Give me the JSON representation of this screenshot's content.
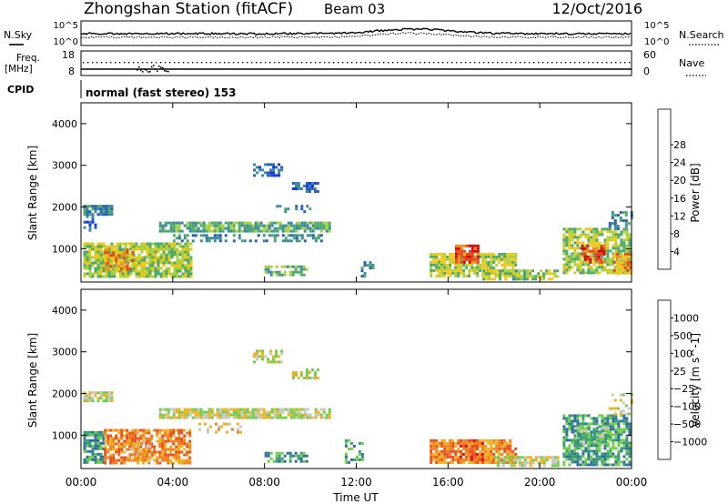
{
  "header": {
    "station": "Zhongshan Station (fitACF)",
    "beam": "Beam 03",
    "date": "12/Oct/2016"
  },
  "panels": {
    "nsky_label": "N.Sky",
    "nsearch_label": "N.Search",
    "nsky_ticks": [
      "10^5",
      "10^0"
    ],
    "nsearch_ticks": [
      "10^5",
      "10^0"
    ],
    "freq_label_top": "Freq.",
    "freq_label_bottom": "[MHz]",
    "freq_ticks": [
      "18",
      "8"
    ],
    "nave_label": "Nave",
    "nave_ticks": [
      "60",
      "0"
    ],
    "cpid_label": "CPID",
    "cpid_text": "normal (fast stereo) 153"
  },
  "colors": {
    "power": [
      "#1432e6",
      "#2a60b4",
      "#3a8aa0",
      "#4caa6a",
      "#a8d040",
      "#f0c818",
      "#f08c1c",
      "#e64a1a",
      "#d00c10"
    ],
    "velocity": [
      "#1a3ca8",
      "#2f6f9a",
      "#3a9a7a",
      "#6fcf4a",
      "#c8c8c0",
      "#f0b020",
      "#f08020",
      "#e85020",
      "#e01010"
    ]
  },
  "chart_data": [
    {
      "type": "heatmap",
      "name": "power",
      "ylabel": "Slant Range [km]",
      "ylim": [
        200,
        4500
      ],
      "y_ticks": [
        1000,
        2000,
        3000,
        4000
      ],
      "xlim": [
        0,
        24
      ],
      "colorbar": {
        "label": "Power [dB]",
        "ticks": [
          "4",
          "8",
          "12",
          "16",
          "20",
          "24",
          "28"
        ]
      },
      "regions": [
        {
          "t0": 0.1,
          "t1": 1.3,
          "r0": 1800,
          "r1": 2050,
          "v": 2,
          "d": 0.85
        },
        {
          "t0": 0.1,
          "t1": 0.6,
          "r0": 1450,
          "r1": 1800,
          "v": 1,
          "d": 0.5
        },
        {
          "t0": 0.1,
          "t1": 4.8,
          "r0": 350,
          "r1": 1150,
          "v": 4,
          "d": 0.85
        },
        {
          "t0": 1.0,
          "t1": 2.2,
          "r0": 500,
          "r1": 1000,
          "v": 6,
          "d": 0.6
        },
        {
          "t0": 3.4,
          "t1": 10.8,
          "r0": 1400,
          "r1": 1650,
          "v": 3,
          "d": 0.85
        },
        {
          "t0": 4.0,
          "t1": 10.5,
          "r0": 1200,
          "r1": 1350,
          "v": 2,
          "d": 0.5
        },
        {
          "t0": 7.5,
          "t1": 8.8,
          "r0": 2750,
          "r1": 3050,
          "v": 1,
          "d": 0.5
        },
        {
          "t0": 9.2,
          "t1": 10.3,
          "r0": 2350,
          "r1": 2600,
          "v": 1,
          "d": 0.6
        },
        {
          "t0": 8.5,
          "t1": 10.0,
          "r0": 1900,
          "r1": 2050,
          "v": 2,
          "d": 0.35
        },
        {
          "t0": 8.0,
          "t1": 9.8,
          "r0": 350,
          "r1": 600,
          "v": 3,
          "d": 0.6
        },
        {
          "t0": 12.2,
          "t1": 12.8,
          "r0": 300,
          "r1": 700,
          "v": 2,
          "d": 0.35
        },
        {
          "t0": 15.2,
          "t1": 19.0,
          "r0": 350,
          "r1": 900,
          "v": 4,
          "d": 0.85
        },
        {
          "t0": 16.3,
          "t1": 17.3,
          "r0": 700,
          "r1": 1100,
          "v": 7,
          "d": 0.8
        },
        {
          "t0": 17.5,
          "t1": 20.8,
          "r0": 250,
          "r1": 500,
          "v": 4,
          "d": 0.7
        },
        {
          "t0": 21.0,
          "t1": 24.0,
          "r0": 400,
          "r1": 1500,
          "v": 4,
          "d": 0.75
        },
        {
          "t0": 21.8,
          "t1": 22.8,
          "r0": 700,
          "r1": 1100,
          "v": 7,
          "d": 0.7
        },
        {
          "t0": 23.2,
          "t1": 24.0,
          "r0": 400,
          "r1": 900,
          "v": 6,
          "d": 0.7
        },
        {
          "t0": 23.0,
          "t1": 24.0,
          "r0": 1500,
          "r1": 1900,
          "v": 2,
          "d": 0.4
        },
        {
          "t0": 18.8,
          "t1": 19.4,
          "r0": 300,
          "r1": 500,
          "v": 3,
          "d": 0.6
        }
      ]
    },
    {
      "type": "heatmap",
      "name": "velocity",
      "ylabel": "Slant Range [km]",
      "xlabel": "Time UT",
      "ylim": [
        200,
        4500
      ],
      "y_ticks": [
        1000,
        2000,
        3000,
        4000
      ],
      "xlim": [
        0,
        24
      ],
      "x_ticks": [
        "00:00",
        "04:00",
        "08:00",
        "12:00",
        "16:00",
        "20:00",
        "00:00"
      ],
      "colorbar": {
        "label": "Velocity [m s^-1]",
        "ticks": [
          "1000",
          "500",
          "100",
          "25",
          "−25",
          "−100",
          "−500",
          "−1000"
        ]
      },
      "regions": [
        {
          "t0": 0.1,
          "t1": 1.3,
          "r0": 1800,
          "r1": 2050,
          "v": 4,
          "d": 0.85
        },
        {
          "t0": 0.1,
          "t1": 1.0,
          "r0": 350,
          "r1": 1100,
          "v": 2,
          "d": 0.75
        },
        {
          "t0": 1.0,
          "t1": 4.8,
          "r0": 350,
          "r1": 1150,
          "v": 6,
          "d": 0.75
        },
        {
          "t0": 2.0,
          "t1": 3.0,
          "r0": 400,
          "r1": 900,
          "v": 5,
          "d": 0.6
        },
        {
          "t0": 3.4,
          "t1": 10.8,
          "r0": 1400,
          "r1": 1650,
          "v": 4,
          "d": 0.85
        },
        {
          "t0": 5.0,
          "t1": 7.0,
          "r0": 1100,
          "r1": 1300,
          "v": 5,
          "d": 0.4
        },
        {
          "t0": 7.5,
          "t1": 8.8,
          "r0": 2750,
          "r1": 3050,
          "v": 4,
          "d": 0.55
        },
        {
          "t0": 9.2,
          "t1": 10.3,
          "r0": 2350,
          "r1": 2600,
          "v": 4,
          "d": 0.6
        },
        {
          "t0": 8.0,
          "t1": 9.8,
          "r0": 350,
          "r1": 600,
          "v": 2,
          "d": 0.6
        },
        {
          "t0": 11.5,
          "t1": 12.3,
          "r0": 350,
          "r1": 900,
          "v": 2,
          "d": 0.4
        },
        {
          "t0": 15.2,
          "t1": 19.0,
          "r0": 350,
          "r1": 900,
          "v": 6,
          "d": 0.8
        },
        {
          "t0": 16.5,
          "t1": 17.5,
          "r0": 400,
          "r1": 900,
          "v": 7,
          "d": 0.5
        },
        {
          "t0": 18.0,
          "t1": 20.8,
          "r0": 250,
          "r1": 500,
          "v": 4,
          "d": 0.7
        },
        {
          "t0": 21.0,
          "t1": 24.0,
          "r0": 300,
          "r1": 1500,
          "v": 2,
          "d": 0.75
        },
        {
          "t0": 21.5,
          "t1": 23.0,
          "r0": 800,
          "r1": 1200,
          "v": 3,
          "d": 0.6
        },
        {
          "t0": 23.0,
          "t1": 24.0,
          "r0": 1500,
          "r1": 2000,
          "v": 4,
          "d": 0.4
        }
      ]
    }
  ]
}
